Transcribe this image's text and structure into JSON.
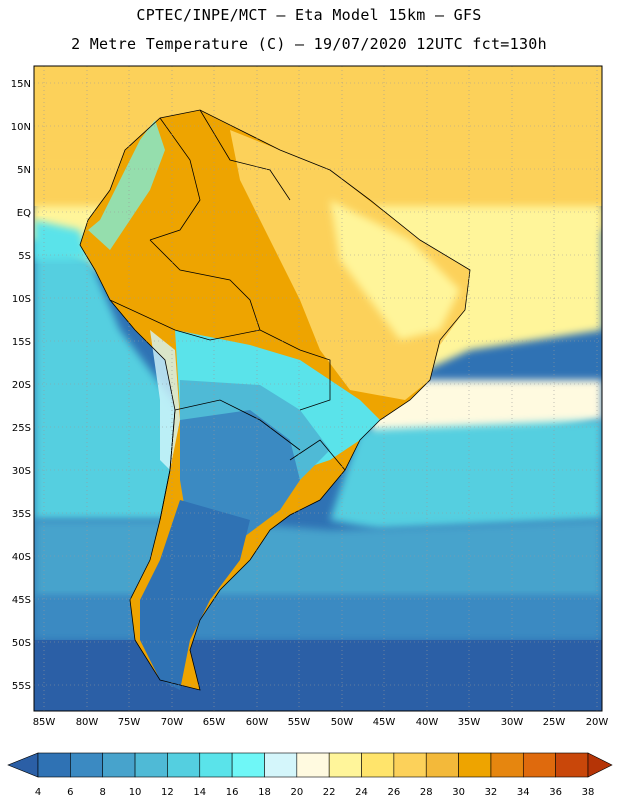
{
  "header": {
    "line1": "CPTEC/INPE/MCT –  Eta Model 15km – GFS",
    "line2": "2 Metre Temperature (C) – 19/07/2020 12UTC fct=130h"
  },
  "axes": {
    "lat_labels": [
      "15N",
      "10N",
      "5N",
      "EQ",
      "5S",
      "10S",
      "15S",
      "20S",
      "25S",
      "30S",
      "35S",
      "40S",
      "45S",
      "50S",
      "55S"
    ],
    "lon_labels": [
      "85W",
      "80W",
      "75W",
      "70W",
      "65W",
      "60W",
      "55W",
      "50W",
      "45W",
      "40W",
      "35W",
      "30W",
      "25W",
      "20W"
    ]
  },
  "colorbar": {
    "labels": [
      "4",
      "6",
      "8",
      "10",
      "12",
      "14",
      "16",
      "18",
      "20",
      "22",
      "24",
      "26",
      "28",
      "30",
      "32",
      "34",
      "36",
      "38"
    ],
    "colors": [
      "#2b5fa6",
      "#2f72b4",
      "#3b8ac2",
      "#47a3cc",
      "#4fbad6",
      "#54cfe0",
      "#5ae3ea",
      "#6ff7f7",
      "#d4f6fb",
      "#fffae0",
      "#fff59a",
      "#ffe46b",
      "#fcd15a",
      "#f3b93a",
      "#eea400",
      "#e6860f",
      "#df6a0d",
      "#c9470a",
      "#b53406"
    ]
  }
}
